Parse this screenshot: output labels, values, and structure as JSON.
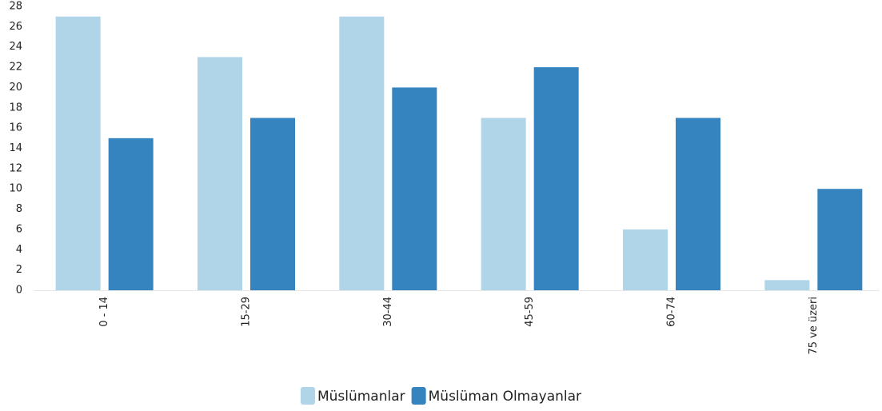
{
  "chart_data": {
    "type": "bar",
    "categories": [
      "0 - 14",
      "15-29",
      "30-44",
      "45-59",
      "60-74",
      "75 ve üzeri"
    ],
    "series": [
      {
        "name": "Müslümanlar",
        "color": "#b0d4e8",
        "values": [
          27,
          23,
          27,
          17,
          6,
          1
        ]
      },
      {
        "name": "Müslüman Olmayanlar",
        "color": "#3584bf",
        "values": [
          15,
          17,
          20,
          22,
          17,
          10
        ]
      }
    ],
    "ylim": [
      0,
      28
    ],
    "yticks": [
      0,
      2,
      4,
      6,
      8,
      10,
      12,
      14,
      16,
      18,
      20,
      22,
      24,
      26,
      28
    ],
    "grid": false,
    "legend": "bottom"
  }
}
